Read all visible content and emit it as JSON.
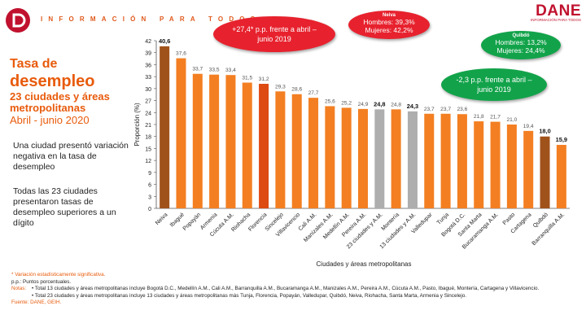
{
  "header": {
    "tagline": "INFORMACIÓN PARA TODOS",
    "brand": "DANE",
    "brand_sub": "INFORMACIÓN PARA TODOS",
    "logo_icon": "dane-d-logo-icon"
  },
  "title": {
    "line1": "Tasa de",
    "line2": "desempleo",
    "line3": "23 ciudades y áreas metropolitanas",
    "line4": "Abril - junio 2020"
  },
  "descriptions": [
    "Una ciudad presentó variación negativa en la tasa de desempleo",
    "Todas las 23 ciudades presentaron tasas de desempleo superiores a un dígito"
  ],
  "callouts": {
    "neiva_change": "+27,4* p.p. frente a abril – junio 2019",
    "neiva_title": "Neiva",
    "neiva_men": "Hombres: 39,3%",
    "neiva_women": "Mujeres: 42,2%",
    "quibdo_title": "Quibdó",
    "quibdo_men": "Hombres: 13,2%",
    "quibdo_women": "Mujeres: 24,4%",
    "quibdo_change": "-2,3 p.p. frente a abril – junio 2019"
  },
  "chart_data": {
    "type": "bar",
    "title": "Tasa de desempleo 23 ciudades y áreas metropolitanas Abril - junio 2020",
    "xlabel": "Ciudades y áreas metropolitanas",
    "ylabel": "Proporción (%)",
    "ylim": [
      0,
      42
    ],
    "yticks": [
      "0",
      "3",
      "6",
      "9",
      "12",
      "15",
      "18",
      "21",
      "24",
      "27",
      "30",
      "33",
      "36",
      "39",
      "42"
    ],
    "grid": false,
    "categories": [
      "Neiva",
      "Ibagué",
      "Popayán",
      "Armenia",
      "Cúcuta A.M.",
      "Riohacha",
      "Florencia",
      "Sincelejo",
      "Villavicencio",
      "Cali A.M.",
      "Manizales A.M.",
      "Medellín A.M.",
      "Pereira A.M.",
      "23 ciudades y A.M.",
      "Montería",
      "13 ciudades y A.M.",
      "Valledupar",
      "Tunja",
      "Bogotá D.C.",
      "Santa Marta",
      "Bucaramanga A.M.",
      "Pasto",
      "Cartagena",
      "Quibdó",
      "Barranquilla A.M."
    ],
    "values": [
      40.6,
      37.6,
      33.7,
      33.5,
      33.4,
      31.5,
      31.2,
      29.3,
      28.6,
      27.7,
      25.6,
      25.2,
      24.9,
      24.8,
      24.8,
      24.3,
      23.7,
      23.7,
      23.6,
      21.8,
      21.7,
      21.0,
      19.4,
      18.0,
      15.9
    ],
    "labels": [
      "40,6",
      "37,6",
      "33,7",
      "33,5",
      "33,4",
      "31,5",
      "31,2",
      "29,3",
      "28,6",
      "27,7",
      "25,6",
      "25,2",
      "24,9",
      "24,8",
      "24,8",
      "24,3",
      "23,7",
      "23,7",
      "23,6",
      "21,8",
      "21,7",
      "21,0",
      "19,4",
      "18,0",
      "15,9"
    ],
    "bold_labels": [
      0,
      13,
      15,
      23,
      24
    ],
    "colors": {
      "default": "#f37f22",
      "highlight_dark": "#a0521b",
      "dark_orange": "#dd4a12",
      "gray": "#aeaeae",
      "axis": "#555555"
    },
    "color_keys": [
      "highlight_dark",
      "default",
      "default",
      "default",
      "default",
      "default",
      "dark_orange",
      "default",
      "default",
      "default",
      "default",
      "default",
      "default",
      "gray",
      "default",
      "gray",
      "default",
      "default",
      "default",
      "default",
      "default",
      "default",
      "default",
      "highlight_dark",
      "default"
    ]
  },
  "notes": {
    "asterisk": "* Variación estadísticamente significativa.",
    "pp": "p.p.: Puntos porcentuales.",
    "notes_label": "Notas:",
    "note1": "• Total 13 ciudades y áreas metropolitanas incluye Bogotá D.C., Medellín A.M., Cali A.M., Barranquilla A.M., Bucaramanga A.M., Manizales A.M., Pereira A.M., Cúcuta A.M., Pasto, Ibagué, Montería, Cartagena y Villavicencio.",
    "note2": "• Total 23 ciudades y áreas metropolitanas incluye 13 ciudades y áreas metropolitanas más Tunja, Florencia, Popayán, Valledupar, Quibdó, Neiva, Riohacha, Santa Marta, Armenia y Sincelejo.",
    "source": "Fuente: DANE, GEIH."
  }
}
